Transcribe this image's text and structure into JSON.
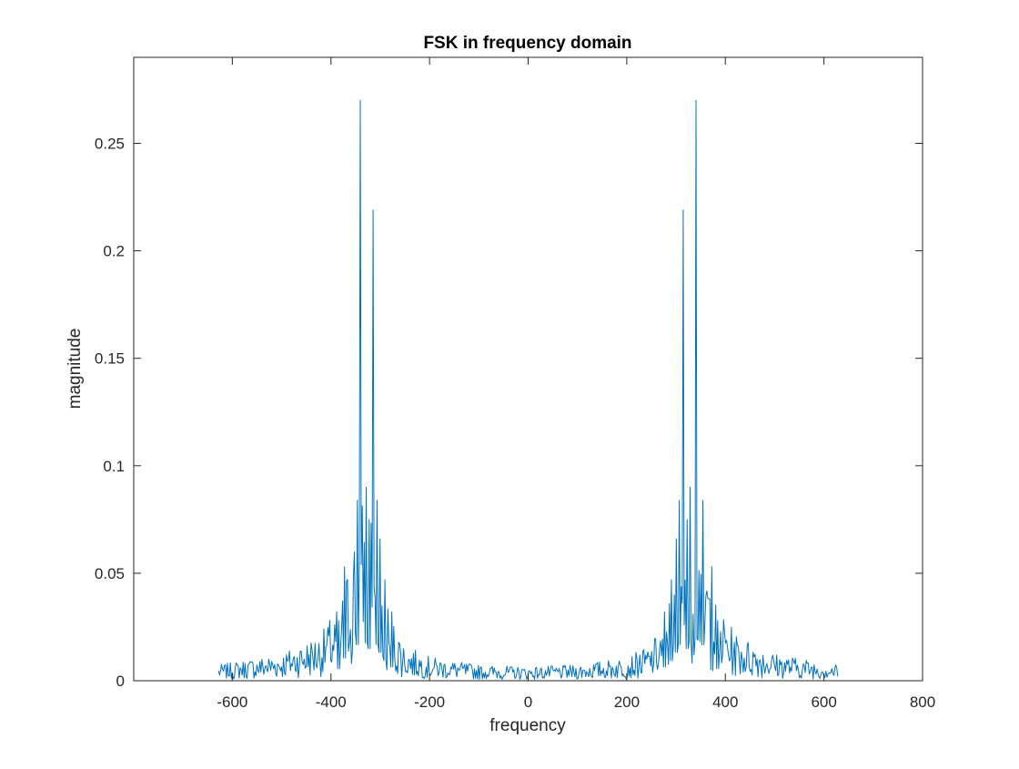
{
  "chart_data": {
    "type": "line",
    "title": "FSK in frequency domain",
    "xlabel": "frequency",
    "ylabel": "magnitude",
    "xlim": [
      -800,
      800
    ],
    "ylim": [
      0,
      0.29
    ],
    "xticks": [
      -600,
      -400,
      -200,
      0,
      200,
      400,
      600,
      800
    ],
    "xtick_labels": [
      "-600",
      "-400",
      "-200",
      "0",
      "200",
      "400",
      "600",
      "800"
    ],
    "yticks": [
      0,
      0.05,
      0.1,
      0.15,
      0.2,
      0.25
    ],
    "ytick_labels": [
      "0",
      "0.05",
      "0.1",
      "0.15",
      "0.2",
      "0.25"
    ],
    "grid": false,
    "box": true,
    "series": [
      {
        "color": "#0072BD",
        "x_range": [
          -628,
          628
        ],
        "samples": 630,
        "baseline_profile": [
          {
            "f": 0,
            "mean": 0.0035
          },
          {
            "f": 100,
            "mean": 0.004
          },
          {
            "f": 200,
            "mean": 0.006
          },
          {
            "f": 250,
            "mean": 0.009
          },
          {
            "f": 280,
            "mean": 0.017
          },
          {
            "f": 300,
            "mean": 0.03
          },
          {
            "f": 315,
            "mean": 0.045
          },
          {
            "f": 330,
            "mean": 0.05
          },
          {
            "f": 345,
            "mean": 0.045
          },
          {
            "f": 360,
            "mean": 0.033
          },
          {
            "f": 380,
            "mean": 0.02
          },
          {
            "f": 420,
            "mean": 0.012
          },
          {
            "f": 500,
            "mean": 0.007
          },
          {
            "f": 628,
            "mean": 0.004
          }
        ],
        "peaks": [
          {
            "x": 340,
            "y": 0.27
          },
          {
            "x": -340,
            "y": 0.27
          },
          {
            "x": 314,
            "y": 0.219
          },
          {
            "x": -314,
            "y": 0.219
          },
          {
            "x": 328,
            "y": 0.09
          },
          {
            "x": -328,
            "y": 0.09
          },
          {
            "x": 354,
            "y": 0.084
          },
          {
            "x": -346,
            "y": 0.084
          },
          {
            "x": 306,
            "y": 0.084
          },
          {
            "x": -306,
            "y": 0.084
          },
          {
            "x": 322,
            "y": 0.075
          },
          {
            "x": -322,
            "y": 0.075
          },
          {
            "x": 300,
            "y": 0.066
          },
          {
            "x": -300,
            "y": 0.066
          },
          {
            "x": 290,
            "y": 0.047
          },
          {
            "x": -290,
            "y": 0.047
          },
          {
            "x": 372,
            "y": 0.053
          },
          {
            "x": -372,
            "y": 0.053
          },
          {
            "x": 276,
            "y": 0.032
          },
          {
            "x": -276,
            "y": 0.032
          },
          {
            "x": 384,
            "y": 0.028
          },
          {
            "x": -384,
            "y": 0.028
          }
        ]
      }
    ]
  }
}
